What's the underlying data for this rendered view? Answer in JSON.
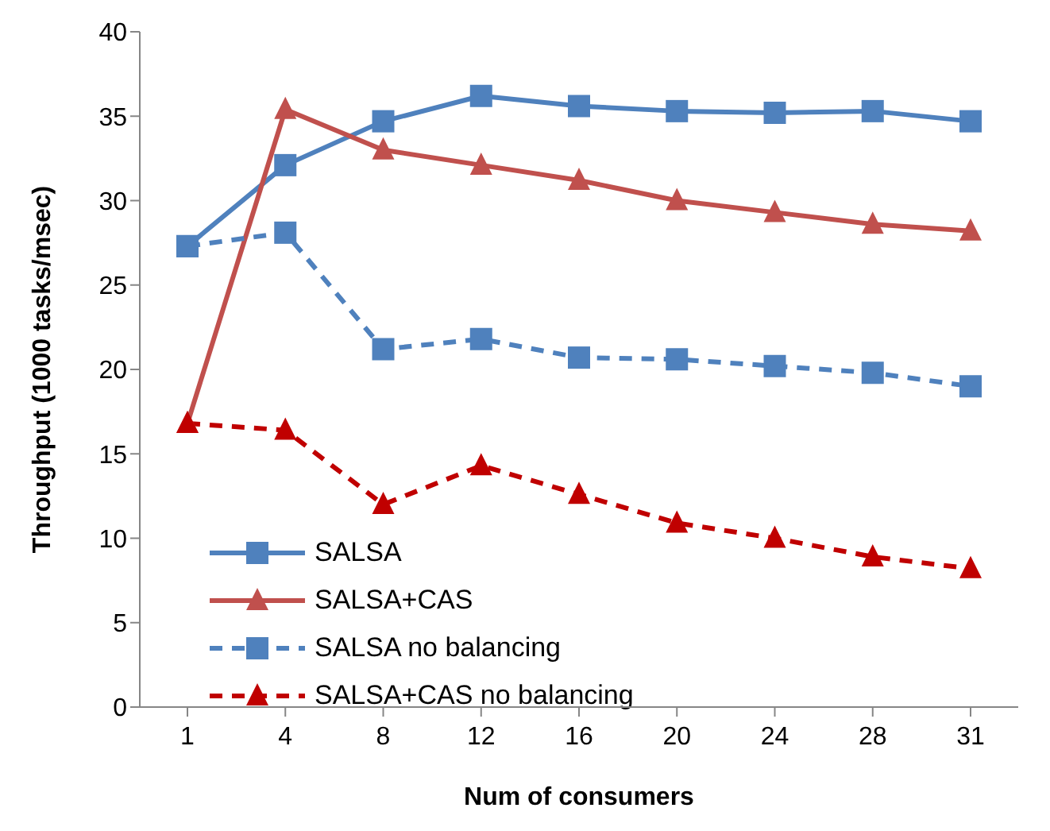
{
  "chart_data": {
    "type": "line",
    "xlabel": "Num of consumers",
    "ylabel": "Throughput (1000 tasks/msec)",
    "categories": [
      "1",
      "4",
      "8",
      "12",
      "16",
      "20",
      "24",
      "28",
      "31"
    ],
    "ylim": [
      0,
      40
    ],
    "yticks": [
      0,
      5,
      10,
      15,
      20,
      25,
      30,
      35,
      40
    ],
    "grid": false,
    "legend": "bottom left",
    "series": [
      {
        "name": "SALSA",
        "color": "#4f81bd",
        "marker": "square",
        "line_style": "solid",
        "values": [
          27.3,
          32.1,
          34.7,
          36.2,
          35.6,
          35.3,
          35.2,
          35.3,
          34.7
        ]
      },
      {
        "name": "SALSA+CAS",
        "color": "#c0504d",
        "marker": "triangle",
        "line_style": "solid",
        "values": [
          16.8,
          35.4,
          33.0,
          32.1,
          31.2,
          30.0,
          29.3,
          28.6,
          28.2
        ]
      },
      {
        "name": "SALSA no balancing",
        "color": "#4f81bd",
        "marker": "square",
        "line_style": "dashed",
        "values": [
          27.3,
          28.1,
          21.2,
          21.8,
          20.7,
          20.6,
          20.2,
          19.8,
          19.0
        ]
      },
      {
        "name": "SALSA+CAS no balancing",
        "color": "#c00000",
        "marker": "triangle",
        "line_style": "dashed",
        "values": [
          16.8,
          16.4,
          12.0,
          14.3,
          12.6,
          10.9,
          10.0,
          8.9,
          8.2
        ]
      }
    ]
  }
}
